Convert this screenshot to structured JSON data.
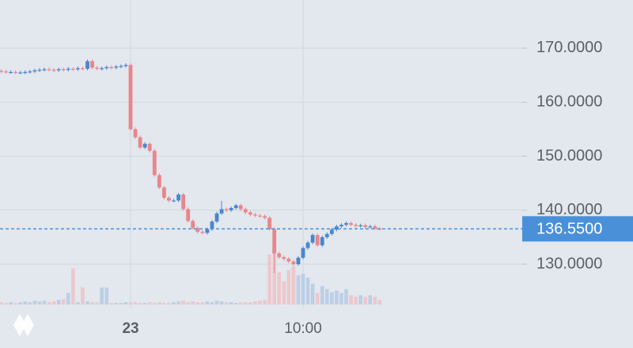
{
  "chart_data": {
    "type": "candlestick",
    "categories": [
      null,
      null,
      null,
      null,
      null,
      null,
      null,
      null,
      null,
      null,
      null,
      null,
      null,
      null,
      null,
      null,
      null,
      null,
      null,
      null,
      null,
      null,
      null,
      null,
      null,
      null,
      null,
      "23",
      null,
      null,
      null,
      null,
      null,
      null,
      null,
      null,
      null,
      null,
      null,
      null,
      null,
      null,
      null,
      null,
      null,
      null,
      null,
      null,
      null,
      null,
      null,
      null,
      null,
      null,
      null,
      null,
      null,
      null,
      null,
      null,
      null,
      null,
      null,
      "10:00",
      null,
      null,
      null,
      null,
      null,
      null,
      null,
      null,
      null,
      null,
      null,
      null,
      null,
      null,
      null,
      null
    ],
    "open": [
      165.8,
      165.7,
      165.6,
      165.6,
      165.5,
      165.5,
      165.6,
      165.7,
      165.9,
      166.0,
      166.1,
      166.0,
      165.9,
      166.1,
      166.0,
      166.2,
      166.1,
      166.3,
      166.2,
      167.6,
      166.4,
      166.2,
      166.3,
      166.5,
      166.4,
      166.6,
      166.7,
      166.9,
      155.0,
      153.5,
      151.6,
      152.3,
      151.0,
      146.5,
      144.2,
      142.3,
      141.8,
      141.8,
      142.9,
      140.2,
      138.0,
      136.7,
      136.0,
      135.8,
      136.5,
      137.9,
      139.4,
      140.2,
      140.0,
      140.4,
      140.9,
      140.2,
      139.6,
      139.2,
      139.0,
      138.9,
      138.6,
      136.5,
      132.0,
      131.3,
      131.0,
      130.5,
      130.0,
      131.2,
      133.0,
      134.0,
      135.4,
      133.5,
      135.0,
      135.6,
      136.4,
      137.0,
      137.3,
      137.6,
      137.3,
      137.1,
      137.2,
      136.9,
      137.0,
      136.6
    ],
    "high": [
      166.1,
      166.0,
      165.9,
      165.9,
      165.8,
      165.9,
      166.0,
      166.2,
      166.3,
      166.4,
      166.4,
      166.3,
      166.4,
      166.4,
      166.5,
      166.5,
      166.6,
      166.6,
      167.9,
      167.9,
      166.7,
      166.6,
      166.8,
      166.8,
      166.9,
      167.0,
      167.2,
      167.2,
      155.3,
      153.8,
      152.6,
      152.6,
      151.3,
      146.8,
      144.5,
      142.6,
      142.1,
      143.2,
      143.2,
      140.5,
      138.3,
      137.0,
      136.3,
      136.8,
      138.2,
      139.7,
      141.7,
      140.5,
      140.7,
      141.2,
      141.2,
      140.5,
      139.9,
      139.5,
      139.3,
      139.2,
      138.9,
      136.8,
      132.3,
      131.6,
      131.3,
      130.8,
      131.5,
      133.3,
      134.3,
      135.7,
      135.7,
      135.3,
      135.9,
      136.7,
      137.3,
      137.6,
      137.9,
      137.9,
      137.6,
      137.5,
      137.5,
      137.3,
      137.3,
      136.9
    ],
    "low": [
      165.4,
      165.3,
      165.3,
      165.2,
      165.2,
      165.2,
      165.3,
      165.4,
      165.6,
      165.7,
      165.7,
      165.6,
      165.6,
      165.7,
      165.7,
      165.8,
      165.8,
      165.9,
      165.9,
      166.1,
      165.9,
      165.9,
      166.0,
      166.1,
      166.1,
      166.3,
      166.4,
      154.7,
      153.2,
      151.3,
      151.3,
      150.7,
      146.2,
      143.9,
      142.0,
      141.5,
      141.5,
      141.5,
      139.9,
      137.7,
      136.4,
      135.7,
      135.5,
      135.5,
      136.2,
      137.6,
      139.1,
      139.7,
      139.7,
      140.1,
      139.9,
      139.3,
      138.9,
      138.7,
      138.6,
      138.3,
      136.2,
      128.4,
      131.0,
      130.7,
      130.2,
      129.7,
      129.7,
      130.9,
      132.7,
      133.7,
      133.2,
      133.2,
      134.7,
      135.3,
      136.1,
      136.7,
      137.0,
      137.0,
      136.8,
      136.8,
      136.6,
      136.6,
      136.3,
      136.25
    ],
    "close": [
      165.7,
      165.6,
      165.6,
      165.5,
      165.5,
      165.6,
      165.7,
      165.9,
      166.0,
      166.1,
      166.0,
      165.9,
      166.1,
      166.0,
      166.2,
      166.1,
      166.3,
      166.2,
      167.6,
      166.4,
      166.2,
      166.3,
      166.5,
      166.4,
      166.6,
      166.7,
      166.9,
      155.0,
      153.5,
      151.6,
      152.3,
      151.0,
      146.5,
      144.2,
      142.3,
      141.8,
      141.8,
      142.9,
      140.2,
      138.0,
      136.7,
      136.0,
      135.8,
      136.5,
      137.9,
      139.4,
      140.2,
      140.0,
      140.4,
      140.9,
      140.2,
      139.6,
      139.2,
      139.0,
      138.9,
      138.6,
      136.5,
      132.0,
      131.3,
      131.0,
      130.5,
      130.0,
      131.2,
      133.0,
      134.0,
      135.4,
      133.5,
      135.0,
      135.6,
      136.4,
      137.0,
      137.3,
      137.6,
      137.3,
      137.1,
      137.2,
      136.9,
      137.0,
      136.6,
      136.55
    ],
    "volume": [
      3,
      2,
      3,
      2,
      3,
      4,
      3,
      5,
      4,
      5,
      3,
      4,
      6,
      7,
      15,
      47,
      3,
      22,
      4,
      3,
      3,
      22,
      22,
      2,
      2,
      2,
      3,
      3,
      3,
      2,
      2,
      3,
      2,
      3,
      2,
      2,
      3,
      4,
      5,
      3,
      4,
      3,
      3,
      4,
      3,
      5,
      4,
      3,
      3,
      2,
      3,
      3,
      3,
      4,
      5,
      6,
      65,
      72,
      42,
      30,
      45,
      50,
      38,
      40,
      35,
      27,
      15,
      24,
      20,
      16,
      18,
      15,
      20,
      12,
      10,
      12,
      10,
      12,
      10,
      6
    ],
    "up_color": "#4a86cc",
    "down_color": "#e8868a",
    "volume_up_color": "#bccfe6",
    "volume_down_color": "#ecc8cc",
    "ylim": [
      114.48,
      178.93
    ],
    "yticks": [
      {
        "value": 130,
        "label": "130.0000"
      },
      {
        "value": 140,
        "label": "140.0000"
      },
      {
        "value": 150,
        "label": "150.0000"
      },
      {
        "value": 160,
        "label": "160.0000"
      },
      {
        "value": 170,
        "label": "170.0000"
      }
    ],
    "last_price": 136.55,
    "last_price_label": "136.5500",
    "last_price_color": "#4a90d9",
    "grid": true
  }
}
